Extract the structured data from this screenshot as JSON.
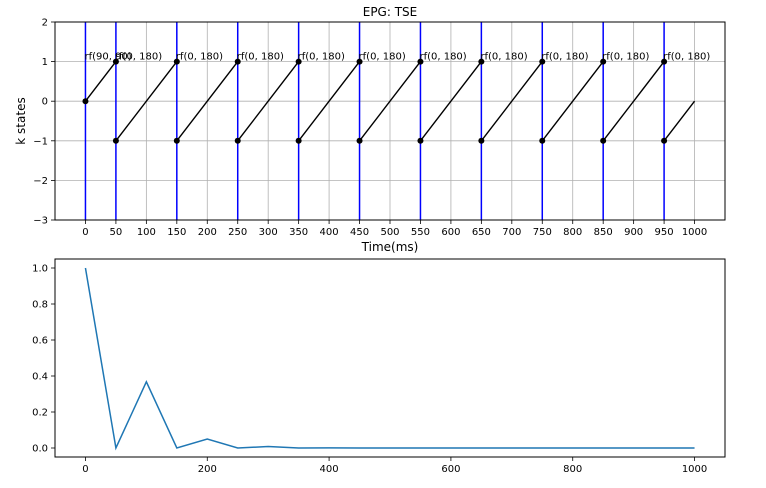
{
  "chart_data": [
    {
      "type": "line",
      "title": "EPG: TSE",
      "xlabel": "Time(ms)",
      "ylabel": "k states",
      "xlim": [
        -50,
        1050
      ],
      "ylim": [
        -3,
        2
      ],
      "xticks": [
        0,
        50,
        100,
        150,
        200,
        250,
        300,
        350,
        400,
        450,
        500,
        550,
        600,
        650,
        700,
        750,
        800,
        850,
        900,
        950,
        1000
      ],
      "yticks": [
        -3,
        -2,
        -1,
        0,
        1,
        2
      ],
      "ytick_labels": [
        "−3",
        "−2",
        "−1",
        "0",
        "1",
        "2"
      ],
      "grid": true,
      "rf_pulses": [
        {
          "t": 0,
          "label": "rf(90, 90)"
        },
        {
          "t": 50,
          "label": "rf(0, 180)"
        },
        {
          "t": 150,
          "label": "rf(0, 180)"
        },
        {
          "t": 250,
          "label": "rf(0, 180)"
        },
        {
          "t": 350,
          "label": "rf(0, 180)"
        },
        {
          "t": 450,
          "label": "rf(0, 180)"
        },
        {
          "t": 550,
          "label": "rf(0, 180)"
        },
        {
          "t": 650,
          "label": "rf(0, 180)"
        },
        {
          "t": 750,
          "label": "rf(0, 180)"
        },
        {
          "t": 850,
          "label": "rf(0, 180)"
        },
        {
          "t": 950,
          "label": "rf(0, 180)"
        }
      ],
      "rf_label_y": 1.15,
      "k_paths": [
        [
          [
            0,
            0
          ],
          [
            50,
            1
          ]
        ],
        [
          [
            50,
            -1
          ],
          [
            150,
            1
          ]
        ],
        [
          [
            150,
            -1
          ],
          [
            250,
            1
          ]
        ],
        [
          [
            250,
            -1
          ],
          [
            350,
            1
          ]
        ],
        [
          [
            350,
            -1
          ],
          [
            450,
            1
          ]
        ],
        [
          [
            450,
            -1
          ],
          [
            550,
            1
          ]
        ],
        [
          [
            550,
            -1
          ],
          [
            650,
            1
          ]
        ],
        [
          [
            650,
            -1
          ],
          [
            750,
            1
          ]
        ],
        [
          [
            750,
            -1
          ],
          [
            850,
            1
          ]
        ],
        [
          [
            850,
            -1
          ],
          [
            950,
            1
          ]
        ],
        [
          [
            950,
            -1
          ],
          [
            1000,
            0
          ]
        ]
      ],
      "state_points": [
        [
          0,
          0
        ],
        [
          50,
          1
        ],
        [
          50,
          -1
        ],
        [
          150,
          1
        ],
        [
          150,
          -1
        ],
        [
          250,
          1
        ],
        [
          250,
          -1
        ],
        [
          350,
          1
        ],
        [
          350,
          -1
        ],
        [
          450,
          1
        ],
        [
          450,
          -1
        ],
        [
          550,
          1
        ],
        [
          550,
          -1
        ],
        [
          650,
          1
        ],
        [
          650,
          -1
        ],
        [
          750,
          1
        ],
        [
          750,
          -1
        ],
        [
          850,
          1
        ],
        [
          850,
          -1
        ],
        [
          950,
          1
        ],
        [
          950,
          -1
        ]
      ],
      "colors": {
        "rf": "#0000ff",
        "path": "#000000",
        "grid": "#b0b0b0"
      }
    },
    {
      "type": "line",
      "xlim": [
        -50,
        1050
      ],
      "ylim": [
        -0.05,
        1.05
      ],
      "xticks": [
        0,
        200,
        400,
        600,
        800,
        1000
      ],
      "yticks": [
        0.0,
        0.2,
        0.4,
        0.6,
        0.8,
        1.0
      ],
      "ytick_labels": [
        "0.0",
        "0.2",
        "0.4",
        "0.6",
        "0.8",
        "1.0"
      ],
      "grid": false,
      "series": [
        {
          "x": [
            0,
            50,
            100,
            150,
            200,
            250,
            300,
            350,
            400,
            450,
            500,
            550,
            600,
            650,
            700,
            750,
            800,
            850,
            900,
            950,
            1000
          ],
          "values": [
            1.0,
            0.0,
            0.368,
            0.0,
            0.05,
            0.0,
            0.008,
            0.0,
            0.001,
            0.0,
            0.0,
            0.0,
            0.0,
            0.0,
            0.0,
            0.0,
            0.0,
            0.0,
            0.0,
            0.0,
            0.0
          ],
          "color": "#1f77b4"
        }
      ]
    }
  ]
}
